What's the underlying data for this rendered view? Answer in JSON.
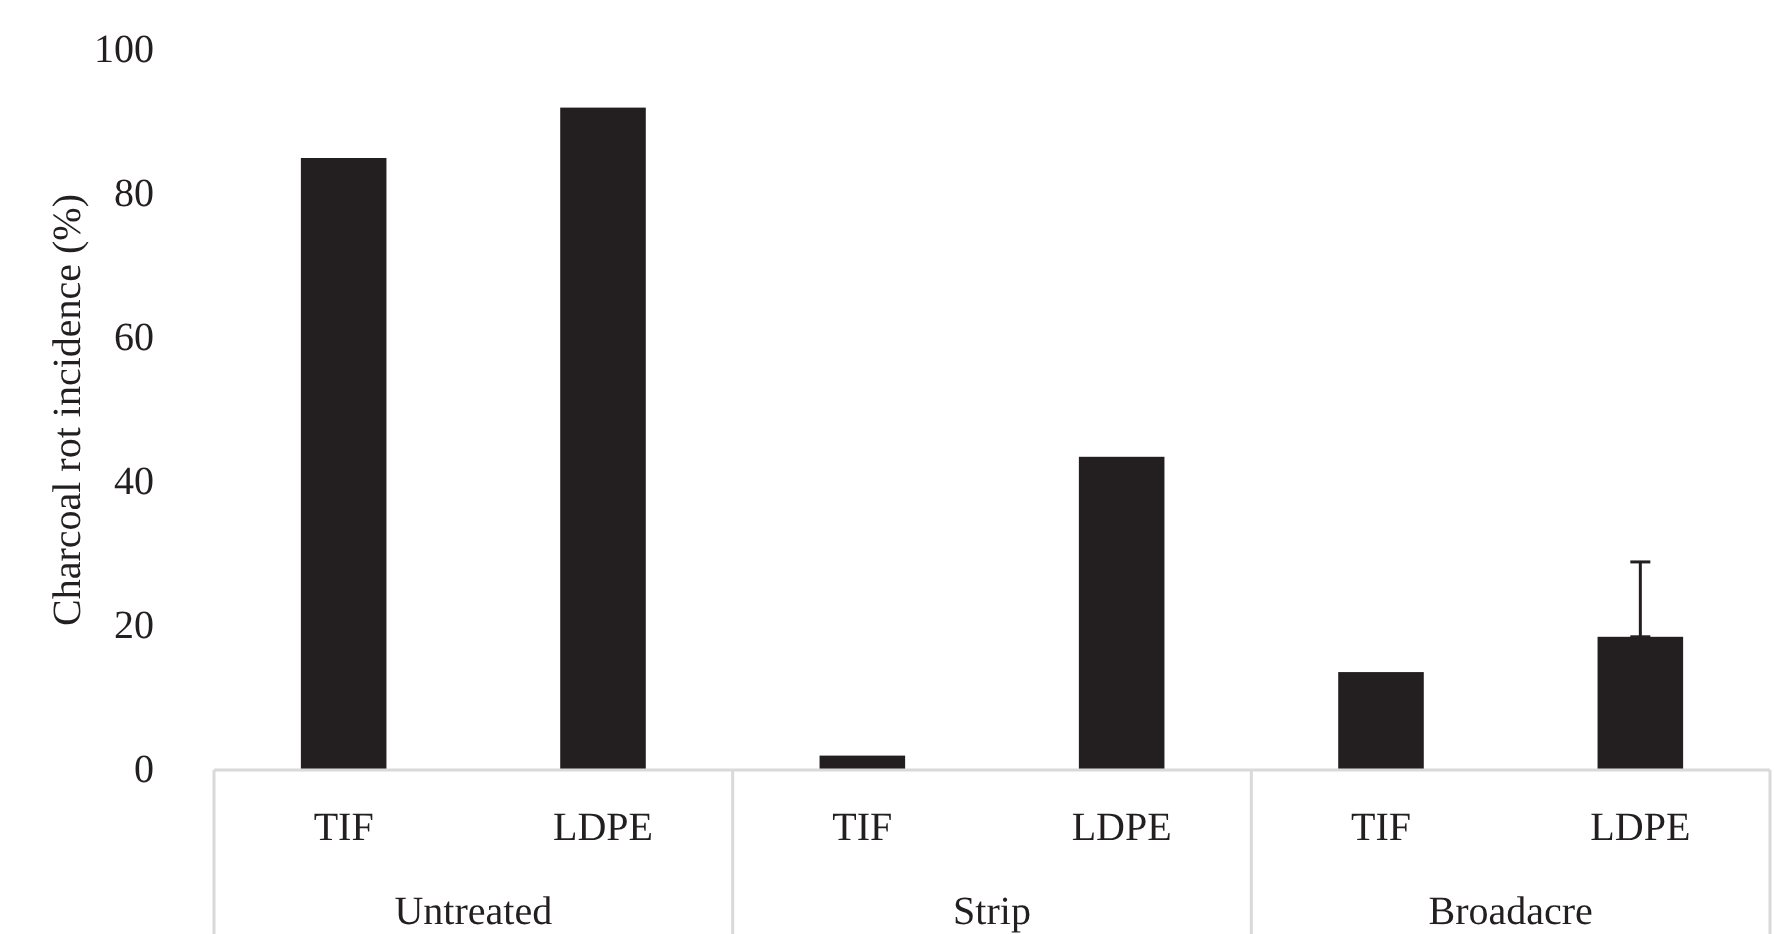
{
  "chart_data": {
    "type": "bar",
    "ylabel": "Charcoal rot incidence (%)",
    "categories": [
      "TIF",
      "LDPE",
      "TIF",
      "LDPE",
      "TIF",
      "LDPE"
    ],
    "values": [
      85,
      92,
      2,
      43.5,
      13.6,
      18.5
    ],
    "errors": [
      null,
      null,
      null,
      null,
      null,
      [
        18.5,
        28.9
      ]
    ],
    "color": "#231f20",
    "ylim": [
      0,
      100
    ],
    "yticks": [
      0,
      20,
      40,
      60,
      80,
      100
    ],
    "annotations": [
      "Untreated",
      "Strip",
      "Broadacre"
    ]
  }
}
